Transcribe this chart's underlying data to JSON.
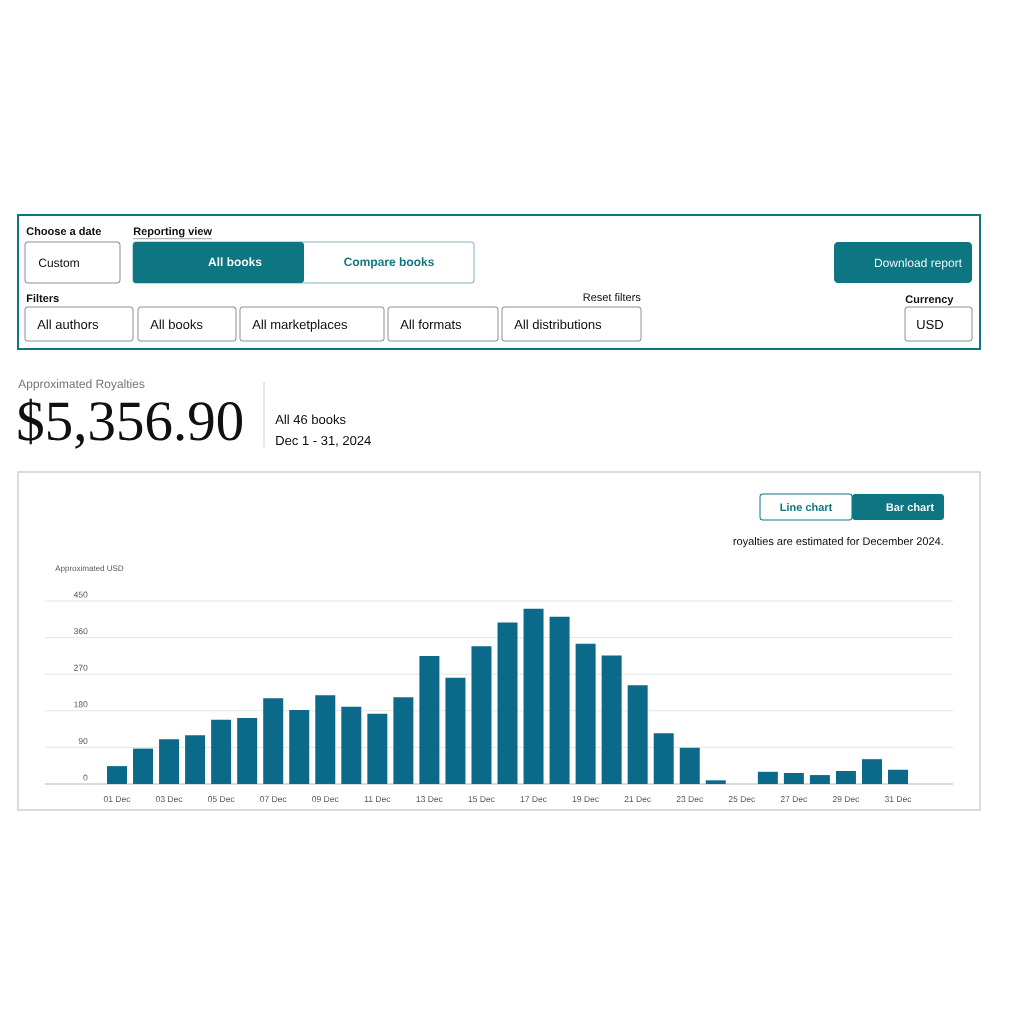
{
  "chart_data": [
    {
      "type": "other",
      "annotations": [
        "Choose a date",
        "Custom",
        "Reporting view",
        "All books",
        "Compare books",
        "Download report",
        "Filters",
        "Reset filters",
        "Currency",
        "All authors",
        "All books",
        "All marketplaces",
        "All formats",
        "All distributions",
        "USD"
      ]
    },
    {
      "type": "other",
      "annotations": [
        "Approximated Royalties",
        "$5,356.90",
        "All 46 books",
        "Dec 1 - 31, 2024"
      ]
    },
    {
      "type": "bar",
      "ylabel": "Approximated USD",
      "categories": [
        "01 Dec",
        null,
        "03 Dec",
        null,
        "05 Dec",
        null,
        "07 Dec",
        null,
        "09 Dec",
        null,
        "11 Dec",
        null,
        "13 Dec",
        null,
        "15 Dec",
        null,
        "17 Dec",
        null,
        "19 Dec",
        null,
        "21 Dec",
        null,
        "23 Dec",
        null,
        "25 Dec",
        null,
        "27 Dec",
        null,
        "29 Dec",
        null,
        "31 Dec"
      ],
      "values": [
        44,
        87,
        110,
        120,
        158,
        162,
        211,
        182,
        218,
        190,
        173,
        213,
        315,
        261,
        339,
        397,
        431,
        411,
        345,
        316,
        243,
        125,
        89,
        9,
        0,
        30,
        27,
        22,
        32,
        61,
        35
      ],
      "color": "#0b6a8a",
      "ylim": [
        0,
        450
      ],
      "yticks": [
        0,
        90,
        180,
        270,
        360,
        450
      ],
      "grid": "y",
      "annotations": [
        "Line chart",
        "Bar chart",
        "royalties are estimated for December 2024."
      ]
    }
  ]
}
